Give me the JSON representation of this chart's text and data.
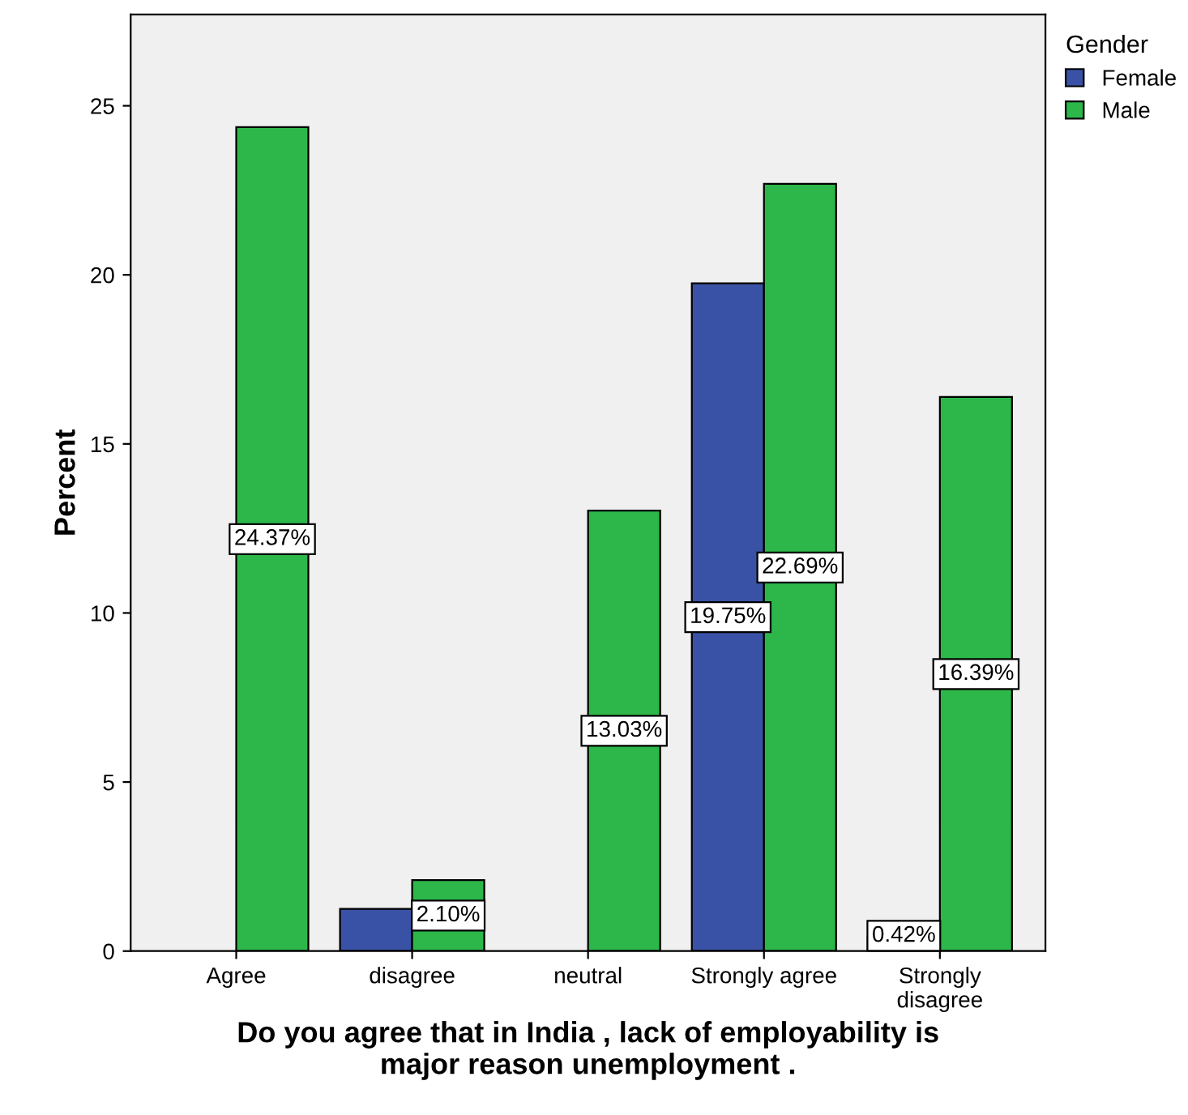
{
  "chart_data": {
    "type": "bar",
    "xlabel": "Do you agree that in India , lack of employability is\nmajor reason unemployment .",
    "ylabel": "Percent",
    "legend_title": "Gender",
    "categories": [
      "Agree",
      "disagree",
      "neutral",
      "Strongly agree",
      "Strongly\ndisagree"
    ],
    "series": [
      {
        "name": "Female",
        "color": "#3a52a5",
        "values": [
          null,
          1.25,
          null,
          19.75,
          0.42
        ],
        "value_labels": [
          null,
          null,
          null,
          "19.75%",
          "0.42%"
        ]
      },
      {
        "name": "Male",
        "color": "#2db74a",
        "values": [
          24.37,
          2.1,
          13.03,
          22.69,
          16.39
        ],
        "value_labels": [
          "24.37%",
          "2.10%",
          "13.03%",
          "22.69%",
          "16.39%"
        ]
      }
    ],
    "ylim": [
      0,
      27.7
    ],
    "yticks": [
      0,
      5,
      10,
      15,
      20,
      25
    ],
    "grid": false,
    "legend": "top right"
  }
}
